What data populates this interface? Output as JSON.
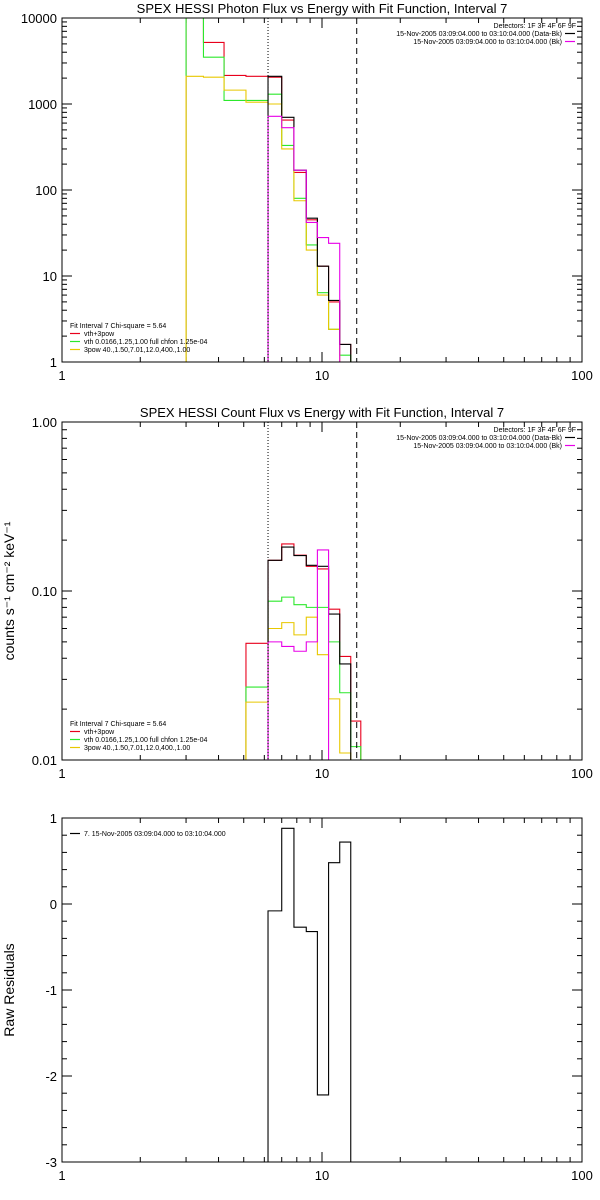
{
  "colors": {
    "red": "#e8001c",
    "green": "#2ce82c",
    "yellow": "#e8c800",
    "magenta": "#e800e8",
    "black": "#000000"
  },
  "chart_data": [
    {
      "type": "line",
      "scale": "log-log",
      "title": "SPEX HESSI Photon Flux vs Energy with Fit Function, Interval 7",
      "ylabel": "",
      "xlim": [
        1,
        100
      ],
      "ylim": [
        1,
        10000
      ],
      "xticks": [
        "1",
        "10",
        "100"
      ],
      "yticks": [
        "1",
        "10",
        "100",
        "1000",
        "10000"
      ],
      "markers": {
        "dotted_x": 6.2,
        "dashed_x": 13.6
      },
      "legend_right": {
        "header": "Detectors: 1F 3F 4F 6F 9F",
        "entries": [
          {
            "text": "15-Nov-2005 03:09:04.000 to 03:10:04.000 (Data-Bk)",
            "color": "#000000"
          },
          {
            "text": "15-Nov-2005 03:09:04.000 to 03:10:04.000 (Bk)",
            "color": "#e800e8"
          }
        ]
      },
      "legend_left": {
        "header": "Fit Interval 7   Chi-square = 5.64",
        "entries": [
          {
            "text": "vth+3pow",
            "color": "#e8001c"
          },
          {
            "text": "vth 0.0166,1.25,1.00  full chfon 1.25e-04",
            "color": "#2ce82c"
          },
          {
            "text": "3pow 40.,1.50,7.01,12.0,400.,1.00",
            "color": "#e8c800"
          }
        ]
      },
      "edges": [
        3,
        3.5,
        4.2,
        5.1,
        6.2,
        7.0,
        7.8,
        8.7,
        9.6,
        10.6,
        11.7,
        12.9,
        14.1
      ],
      "series": [
        {
          "name": "vth+3pow",
          "color": "#e8001c",
          "values": [
            10000,
            5200,
            2150,
            2100,
            2050,
            650,
            160,
            45,
            13,
            5,
            1.6,
            1
          ]
        },
        {
          "name": "vth",
          "color": "#2ce82c",
          "values": [
            10000,
            3500,
            1100,
            1100,
            1300,
            330,
            80,
            23,
            6.4,
            2.4,
            1.2,
            1
          ]
        },
        {
          "name": "3pow",
          "color": "#e8c800",
          "values": [
            2100,
            2050,
            1450,
            1050,
            1000,
            300,
            75,
            20,
            6.0,
            2.4,
            1.0,
            1
          ]
        },
        {
          "name": "data",
          "color": "#000000",
          "values": [
            1,
            1,
            1,
            1,
            2100,
            700,
            170,
            47,
            13,
            5.2,
            1.6,
            1
          ]
        },
        {
          "name": "bk",
          "color": "#e800e8",
          "values": [
            1,
            1,
            1,
            1,
            720,
            530,
            170,
            42,
            28,
            24,
            1,
            1
          ]
        }
      ]
    },
    {
      "type": "line",
      "scale": "log-log",
      "title": "SPEX HESSI Count Flux vs Energy with Fit Function, Interval 7",
      "ylabel": "counts s⁻¹ cm⁻² keV⁻¹",
      "xlim": [
        1,
        100
      ],
      "ylim": [
        0.01,
        1.0
      ],
      "xticks": [
        "1",
        "10",
        "100"
      ],
      "yticks": [
        "0.01",
        "0.10",
        "1.00"
      ],
      "markers": {
        "dotted_x": 6.2,
        "dashed_x": 13.6
      },
      "legend_right": {
        "header": "Detectors: 1F 3F 4F 6F 9F",
        "entries": [
          {
            "text": "15-Nov-2005 03:09:04.000 to 03:10:04.000 (Data-Bk)",
            "color": "#000000"
          },
          {
            "text": "15-Nov-2005 03:09:04.000 to 03:10:04.000 (Bk)",
            "color": "#e800e8"
          }
        ]
      },
      "legend_left": {
        "header": "Fit Interval 7   Chi-square = 5.64",
        "entries": [
          {
            "text": "vth+3pow",
            "color": "#e8001c"
          },
          {
            "text": "vth 0.0166,1.25,1.00  full chfon 1.25e-04",
            "color": "#2ce82c"
          },
          {
            "text": "3pow 40.,1.50,7.01,12.0,400.,1.00",
            "color": "#e8c800"
          }
        ]
      },
      "edges": [
        5.1,
        6.2,
        7.0,
        7.8,
        8.7,
        9.6,
        10.6,
        11.7,
        12.9,
        14.1,
        15.3
      ],
      "series": [
        {
          "name": "vth+3pow",
          "color": "#e8001c",
          "values": [
            0.049,
            0.152,
            0.19,
            0.163,
            0.14,
            0.135,
            0.078,
            0.041,
            0.017,
            0.01
          ]
        },
        {
          "name": "vth",
          "color": "#2ce82c",
          "values": [
            0.027,
            0.087,
            0.092,
            0.083,
            0.08,
            0.08,
            0.05,
            0.025,
            0.012,
            0.01
          ]
        },
        {
          "name": "3pow",
          "color": "#e8c800",
          "values": [
            0.022,
            0.06,
            0.065,
            0.055,
            0.07,
            0.042,
            0.023,
            0.011,
            0.01,
            0.01
          ]
        },
        {
          "name": "data",
          "color": "#000000",
          "values": [
            0.01,
            0.152,
            0.182,
            0.162,
            0.142,
            0.14,
            0.073,
            0.037,
            0.01,
            0.01
          ]
        },
        {
          "name": "bk",
          "color": "#e800e8",
          "values": [
            0.01,
            0.05,
            0.047,
            0.044,
            0.05,
            0.175,
            0.01,
            0.01,
            0.01,
            0.01
          ]
        }
      ]
    },
    {
      "type": "line",
      "scale": "log-linear",
      "title": "",
      "ylabel": "Raw Residuals",
      "xlim": [
        1,
        100
      ],
      "ylim": [
        -3,
        1
      ],
      "xticks": [
        "1",
        "10",
        "100"
      ],
      "yticks": [
        "-3",
        "-2",
        "-1",
        "0",
        "1"
      ],
      "legend_left": {
        "entries": [
          {
            "text": "7. 15-Nov-2005 03:09:04.000 to 03:10:04.000",
            "color": "#000000"
          }
        ]
      },
      "edges": [
        6.2,
        7.0,
        7.8,
        8.7,
        9.6,
        10.6,
        11.7,
        12.9,
        14.1
      ],
      "series": [
        {
          "name": "residuals",
          "color": "#000000",
          "values": [
            -0.08,
            0.88,
            -0.27,
            -0.32,
            -2.22,
            0.48,
            0.72,
            -3
          ]
        }
      ]
    }
  ]
}
